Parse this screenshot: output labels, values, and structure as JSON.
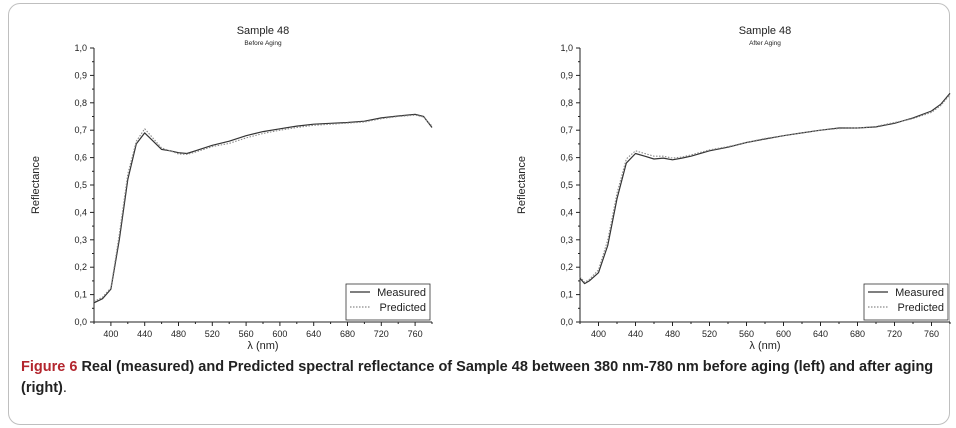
{
  "caption": {
    "label": "Figure 6",
    "text": "Real (measured) and Predicted spectral reflectance of Sample 48 between 380 nm-780 nm before aging (left) and after aging (right)",
    "end": "."
  },
  "chart_data": [
    {
      "type": "line",
      "title": "Sample 48",
      "subtitle": "Before Aging",
      "xlabel": "λ (nm)",
      "ylabel": "Reflectance",
      "xlim": [
        380,
        780
      ],
      "ylim": [
        0,
        1
      ],
      "xticks": [
        "400",
        "440",
        "480",
        "520",
        "560",
        "600",
        "640",
        "680",
        "720",
        "760"
      ],
      "yticks": [
        "0,0",
        "0,1",
        "0,2",
        "0,3",
        "0,4",
        "0,5",
        "0,6",
        "0,7",
        "0,8",
        "0,9",
        "1,0"
      ],
      "legend": "bottom-right",
      "series": [
        {
          "name": "Measured",
          "color": "#333333",
          "style": "solid",
          "x": [
            380,
            390,
            400,
            410,
            420,
            430,
            440,
            450,
            460,
            470,
            480,
            490,
            500,
            520,
            540,
            560,
            580,
            600,
            620,
            640,
            660,
            680,
            700,
            720,
            740,
            760,
            770,
            780
          ],
          "values": [
            0.07,
            0.085,
            0.12,
            0.3,
            0.52,
            0.65,
            0.69,
            0.66,
            0.63,
            0.625,
            0.618,
            0.615,
            0.625,
            0.645,
            0.66,
            0.68,
            0.695,
            0.705,
            0.715,
            0.722,
            0.725,
            0.728,
            0.733,
            0.745,
            0.752,
            0.758,
            0.75,
            0.71
          ]
        },
        {
          "name": "Predicted",
          "color": "#8a8a8a",
          "style": "dotted",
          "x": [
            380,
            390,
            400,
            410,
            420,
            430,
            440,
            450,
            460,
            470,
            480,
            490,
            500,
            520,
            540,
            560,
            580,
            600,
            620,
            640,
            660,
            680,
            700,
            720,
            740,
            760,
            770,
            780
          ],
          "values": [
            0.075,
            0.09,
            0.125,
            0.32,
            0.54,
            0.66,
            0.705,
            0.67,
            0.635,
            0.625,
            0.613,
            0.612,
            0.62,
            0.64,
            0.652,
            0.672,
            0.688,
            0.7,
            0.71,
            0.718,
            0.722,
            0.726,
            0.73,
            0.742,
            0.75,
            0.755,
            0.748,
            0.715
          ]
        }
      ]
    },
    {
      "type": "line",
      "title": "Sample 48",
      "subtitle": "After Aging",
      "xlabel": "λ (nm)",
      "ylabel": "Reflectance",
      "xlim": [
        380,
        780
      ],
      "ylim": [
        0,
        1
      ],
      "xticks": [
        "400",
        "440",
        "480",
        "520",
        "560",
        "600",
        "640",
        "680",
        "720",
        "760"
      ],
      "yticks": [
        "0,0",
        "0,1",
        "0,2",
        "0,3",
        "0,4",
        "0,5",
        "0,6",
        "0,7",
        "0,8",
        "0,9",
        "1,0"
      ],
      "legend": "bottom-right",
      "series": [
        {
          "name": "Measured",
          "color": "#333333",
          "style": "solid",
          "x": [
            380,
            385,
            390,
            400,
            410,
            420,
            430,
            440,
            450,
            460,
            470,
            480,
            490,
            500,
            520,
            540,
            560,
            580,
            600,
            620,
            640,
            660,
            680,
            700,
            720,
            740,
            760,
            770,
            780
          ],
          "values": [
            0.16,
            0.14,
            0.15,
            0.18,
            0.28,
            0.45,
            0.58,
            0.615,
            0.605,
            0.595,
            0.598,
            0.592,
            0.598,
            0.605,
            0.625,
            0.638,
            0.655,
            0.668,
            0.68,
            0.69,
            0.7,
            0.708,
            0.708,
            0.712,
            0.725,
            0.745,
            0.77,
            0.795,
            0.835
          ]
        },
        {
          "name": "Predicted",
          "color": "#8a8a8a",
          "style": "dotted",
          "x": [
            380,
            385,
            390,
            400,
            410,
            420,
            430,
            440,
            450,
            460,
            470,
            480,
            490,
            500,
            520,
            540,
            560,
            580,
            600,
            620,
            640,
            660,
            680,
            700,
            720,
            740,
            760,
            770,
            780
          ],
          "values": [
            0.165,
            0.145,
            0.155,
            0.19,
            0.3,
            0.47,
            0.595,
            0.625,
            0.615,
            0.605,
            0.605,
            0.598,
            0.602,
            0.61,
            0.628,
            0.64,
            0.655,
            0.67,
            0.68,
            0.69,
            0.7,
            0.706,
            0.708,
            0.714,
            0.728,
            0.742,
            0.765,
            0.79,
            0.83
          ]
        }
      ]
    }
  ]
}
